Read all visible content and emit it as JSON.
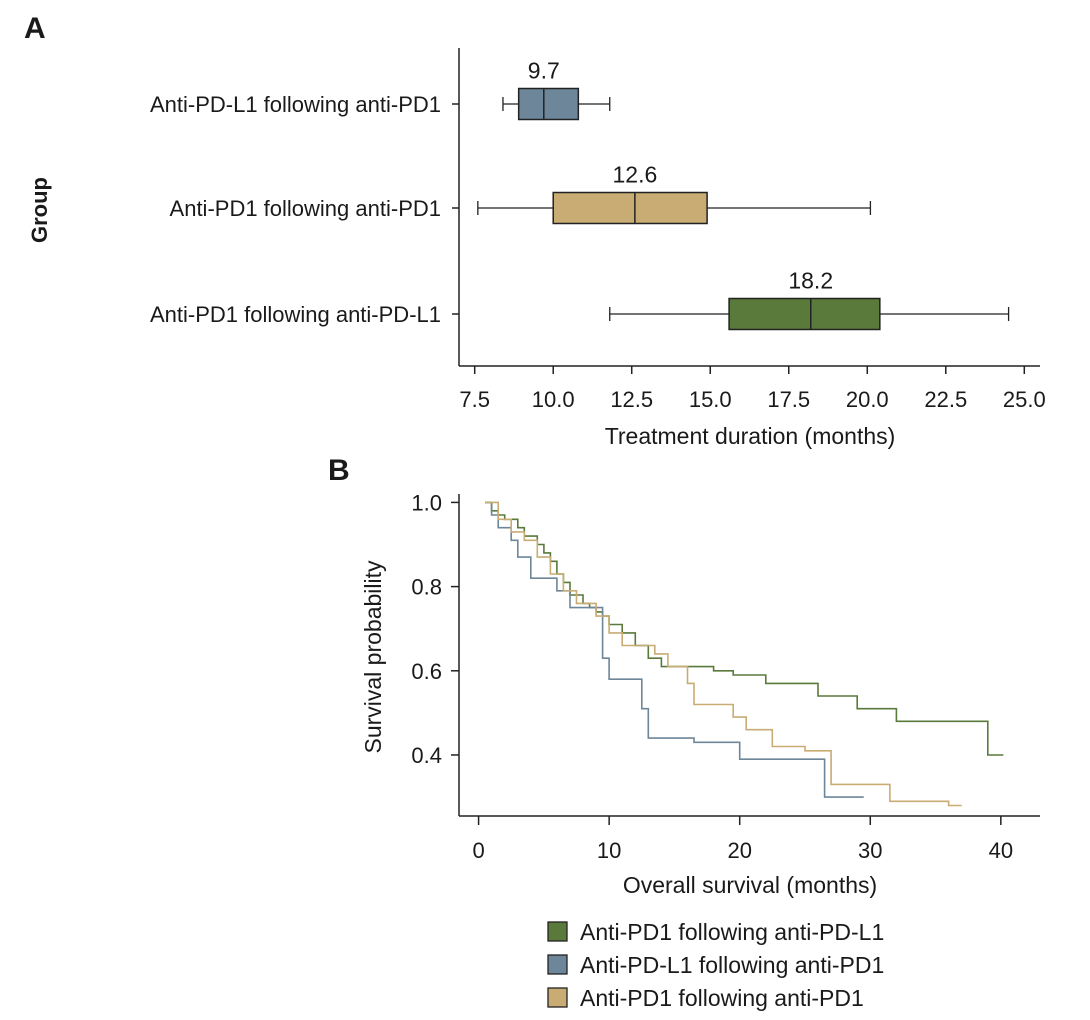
{
  "chart_data": [
    {
      "type": "box",
      "panel": "A",
      "xlabel": "Treatment duration (months)",
      "ylabel": "Group",
      "xlim": [
        7.0,
        25.5
      ],
      "xticks": [
        7.5,
        10.0,
        12.5,
        15.0,
        17.5,
        20.0,
        22.5,
        25.0
      ],
      "xtick_labels": [
        "7.5",
        "10.0",
        "12.5",
        "15.0",
        "17.5",
        "20.0",
        "22.5",
        "25.0"
      ],
      "groups": [
        {
          "name": "Anti-PD-L1 following anti-PD1",
          "color": "#6d8699",
          "whisker_low": 8.4,
          "q1": 8.9,
          "median": 9.7,
          "q3": 10.8,
          "whisker_high": 11.8,
          "median_label": "9.7"
        },
        {
          "name": "Anti-PD1 following anti-PD1",
          "color": "#c9ac73",
          "whisker_low": 7.6,
          "q1": 10.0,
          "median": 12.6,
          "q3": 14.9,
          "whisker_high": 20.1,
          "median_label": "12.6"
        },
        {
          "name": "Anti-PD1 following anti-PD-L1",
          "color": "#5a7a3b",
          "whisker_low": 11.8,
          "q1": 15.6,
          "median": 18.2,
          "q3": 20.4,
          "whisker_high": 24.5,
          "median_label": "18.2"
        }
      ]
    },
    {
      "type": "step-line",
      "panel": "B",
      "xlabel": "Overall survival (months)",
      "ylabel": "Survival probability",
      "xlim": [
        -1.5,
        43
      ],
      "ylim": [
        0.255,
        1.02
      ],
      "xticks": [
        0,
        10,
        20,
        30,
        40
      ],
      "xtick_labels": [
        "0",
        "10",
        "20",
        "30",
        "40"
      ],
      "yticks": [
        0.4,
        0.6,
        0.8,
        1.0
      ],
      "ytick_labels": [
        "0.4",
        "0.6",
        "0.8",
        "1.0"
      ],
      "series": [
        {
          "name": "Anti-PD1 following anti-PD-L1",
          "color": "#5a7a3b",
          "x": [
            0.5,
            1.0,
            1.5,
            2.0,
            3.0,
            3.5,
            4.5,
            5.0,
            5.5,
            6.0,
            6.5,
            7.0,
            8.0,
            8.5,
            9.0,
            9.5,
            10.0,
            11.0,
            12.0,
            13.0,
            14.0,
            18.0,
            19.5,
            22.0,
            26.0,
            29.0,
            32.0,
            39.0,
            40.2
          ],
          "y": [
            1.0,
            0.98,
            0.97,
            0.96,
            0.94,
            0.92,
            0.9,
            0.88,
            0.86,
            0.83,
            0.81,
            0.78,
            0.76,
            0.75,
            0.74,
            0.73,
            0.71,
            0.69,
            0.66,
            0.63,
            0.61,
            0.6,
            0.59,
            0.57,
            0.54,
            0.51,
            0.48,
            0.4,
            0.4
          ]
        },
        {
          "name": "Anti-PD-L1 following anti-PD1",
          "color": "#6d8699",
          "x": [
            0.5,
            1.0,
            1.5,
            2.5,
            3.0,
            4.0,
            6.0,
            7.0,
            9.5,
            10.0,
            12.5,
            13.0,
            16.5,
            20.0,
            26.5,
            29.5
          ],
          "y": [
            1.0,
            0.97,
            0.94,
            0.91,
            0.87,
            0.82,
            0.79,
            0.75,
            0.63,
            0.58,
            0.51,
            0.44,
            0.43,
            0.39,
            0.3,
            0.3
          ]
        },
        {
          "name": "Anti-PD1 following anti-PD1",
          "color": "#c9ac73",
          "x": [
            0.5,
            1.5,
            2.5,
            3.5,
            4.5,
            5.5,
            6.5,
            7.5,
            9.0,
            10.0,
            11.0,
            13.5,
            14.5,
            16.0,
            16.5,
            19.5,
            20.5,
            22.5,
            25.0,
            27.0,
            31.5,
            36.0,
            37.0
          ],
          "y": [
            1.0,
            0.96,
            0.93,
            0.91,
            0.87,
            0.83,
            0.79,
            0.76,
            0.73,
            0.69,
            0.66,
            0.64,
            0.61,
            0.57,
            0.52,
            0.49,
            0.46,
            0.42,
            0.41,
            0.33,
            0.29,
            0.28,
            0.28
          ]
        }
      ],
      "legend": [
        "Anti-PD1 following anti-PD-L1",
        "Anti-PD-L1 following anti-PD1",
        "Anti-PD1 following anti-PD1"
      ],
      "legend_position": "below"
    }
  ]
}
